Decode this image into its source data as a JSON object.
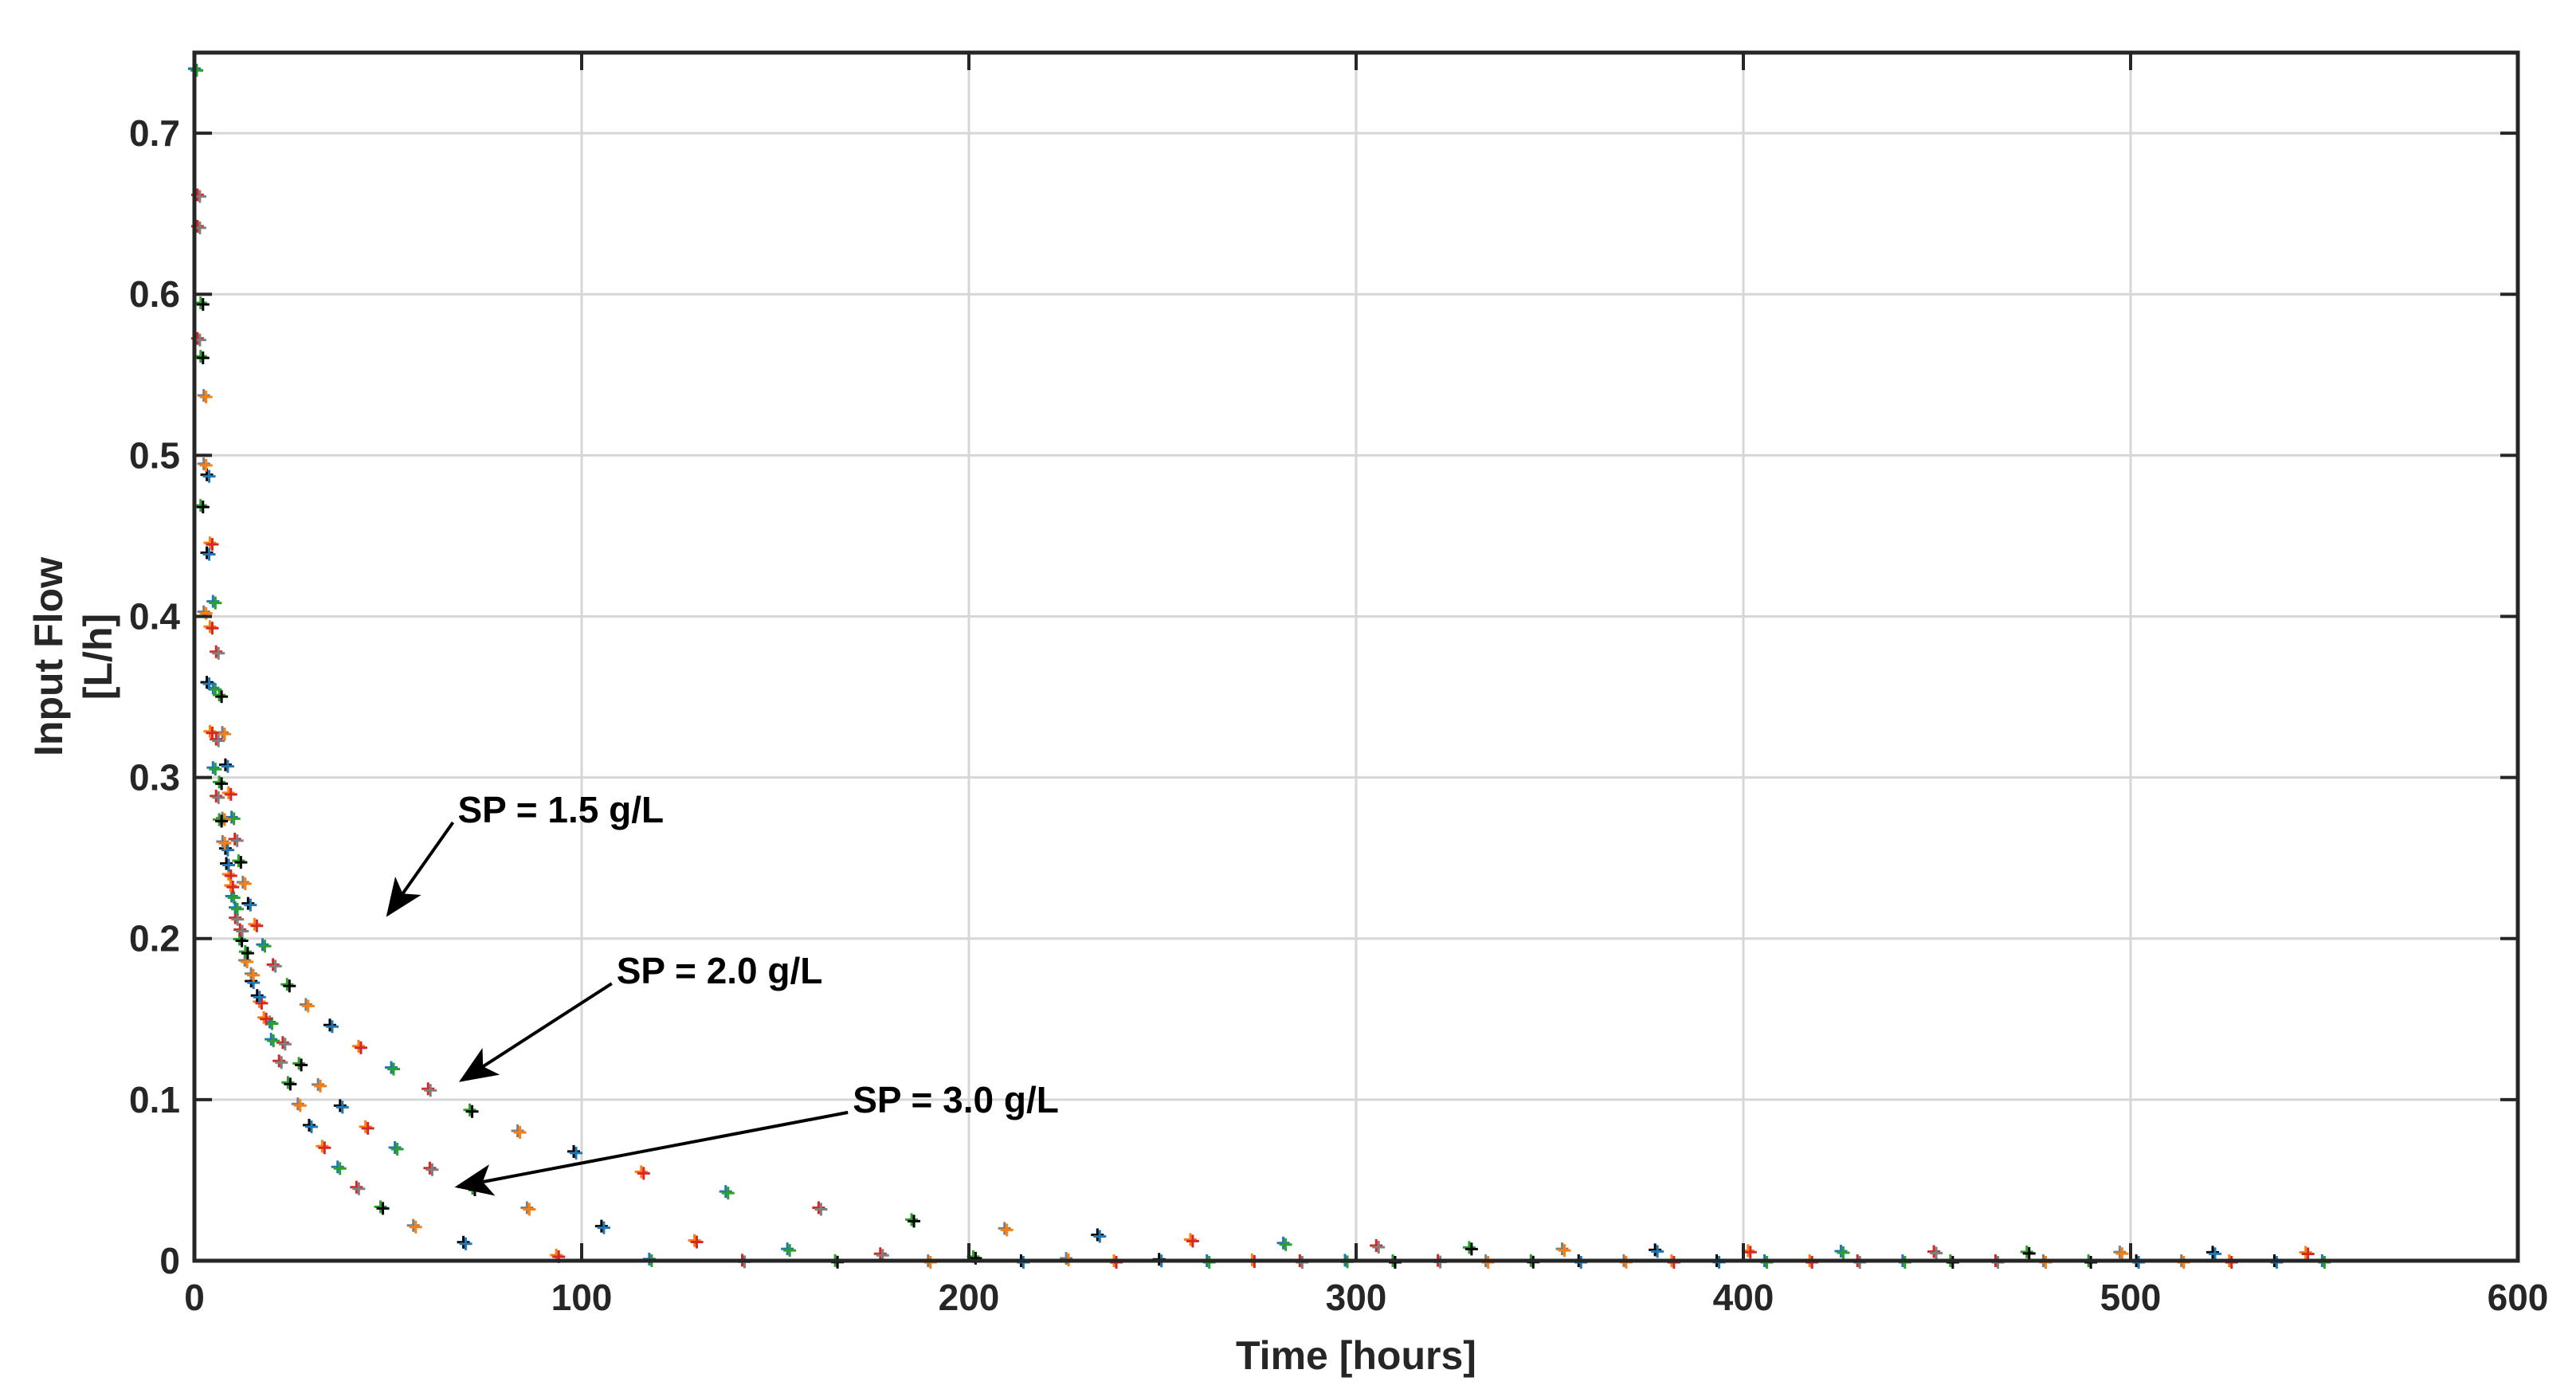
{
  "chart_data": {
    "type": "scatter",
    "title": "",
    "xlabel": "Time [hours]",
    "ylabel": [
      "Input Flow",
      "[L/h]"
    ],
    "xlim": [
      0,
      600
    ],
    "ylim": [
      0,
      0.75
    ],
    "xticks": [
      0,
      100,
      200,
      300,
      400,
      500,
      600
    ],
    "yticks": [
      0,
      0.1,
      0.2,
      0.3,
      0.4,
      0.5,
      0.6,
      0.7
    ],
    "grid": true,
    "legend": "none",
    "marker_colors": [
      "#1f77b4",
      "#d62728",
      "#2ca02c",
      "#7f7f7f",
      "#000000",
      "#ff7f0e"
    ],
    "series": [
      {
        "label": "SP = 1.5 g/L",
        "x_start": 0,
        "x_end": 550,
        "y_peak": 0.74,
        "y_end": 0.005,
        "decay": [
          [
            0.7,
            5
          ],
          [
            0.3,
            78
          ]
        ]
      },
      {
        "label": "SP = 2.0 g/L",
        "x_start": 0,
        "x_end": 550,
        "y_peak": 0.74,
        "y_end": 0.0,
        "decay": [
          [
            0.7,
            4
          ],
          [
            0.3,
            45
          ]
        ]
      },
      {
        "label": "SP = 3.0 g/L",
        "x_start": 0,
        "x_end": 550,
        "y_peak": 0.74,
        "y_end": 0.0,
        "decay": [
          [
            0.5,
            1.5
          ],
          [
            0.5,
            20
          ]
        ]
      }
    ],
    "annotations": [
      {
        "text": "SP = 1.5 g/L",
        "text_at": [
          68,
          0.28
        ],
        "points_to": [
          50,
          0.215
        ]
      },
      {
        "text": "SP = 2.0 g/L",
        "text_at": [
          109,
          0.18
        ],
        "points_to": [
          69,
          0.112
        ]
      },
      {
        "text": "SP = 3.0 g/L",
        "text_at": [
          170,
          0.1
        ],
        "points_to": [
          68,
          0.046
        ]
      }
    ]
  }
}
